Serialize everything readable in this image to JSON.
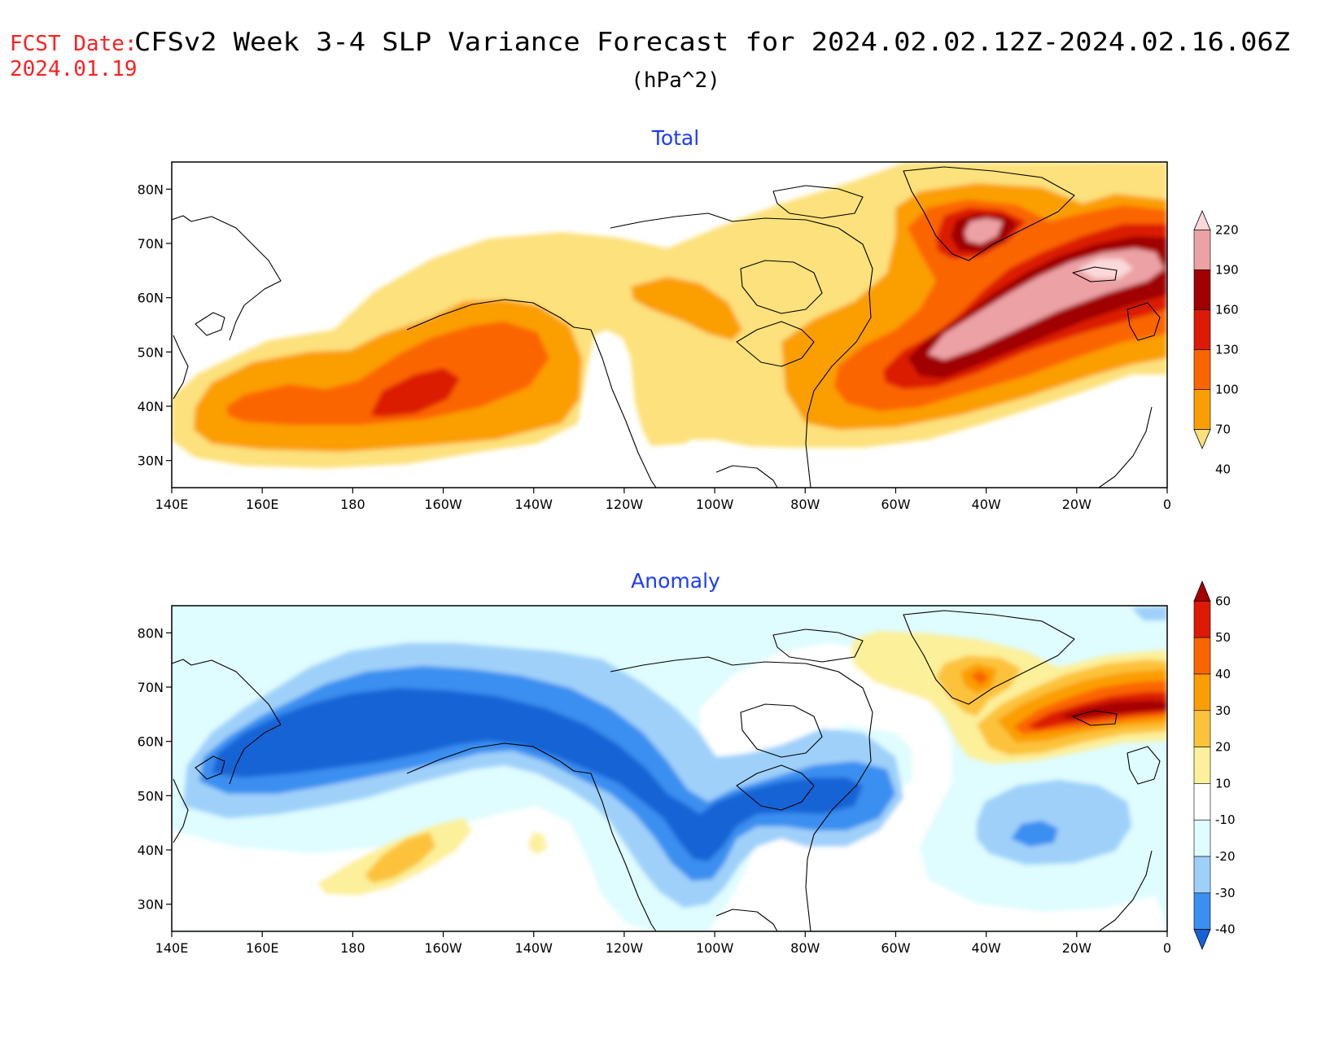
{
  "header": {
    "fcst_label": "FCST Date:",
    "fcst_date": "2024.01.19",
    "title": "CFSv2 Week 3-4 SLP Variance Forecast for 2024.02.02.12Z-2024.02.16.06Z",
    "units": "(hPa^2)"
  },
  "map": {
    "x_ticks": [
      "140E",
      "160E",
      "180",
      "160W",
      "140W",
      "120W",
      "100W",
      "80W",
      "60W",
      "40W",
      "20W",
      "0"
    ],
    "y_ticks": [
      "80N",
      "70N",
      "60N",
      "50N",
      "40N",
      "30N"
    ],
    "lon_range_deg_east": [
      140,
      360
    ],
    "lat_range": [
      25,
      85
    ]
  },
  "panels": [
    {
      "title": "Total",
      "colorbar": {
        "labels": [
          "220",
          "190",
          "160",
          "130",
          "100",
          "70",
          "40"
        ],
        "colors": [
          "#fbd9da",
          "#eca1a4",
          "#a00000",
          "#dc1a05",
          "#fb6500",
          "#fb9e05",
          "#fce17b"
        ],
        "ends": "both"
      },
      "features": [
        {
          "name": "north-pacific-variance-max",
          "lon": 195,
          "lat": 43,
          "level": 4
        },
        {
          "name": "north-atlantic-variance-max",
          "lon": 335,
          "lat": 60,
          "level": 6
        },
        {
          "name": "greenland-variance-max",
          "lon": 320,
          "lat": 72,
          "level": 6
        }
      ]
    },
    {
      "title": "Anomaly",
      "colorbar": {
        "labels": [
          "60",
          "50",
          "40",
          "30",
          "20",
          "10",
          "-10",
          "-20",
          "-30",
          "-40"
        ],
        "colors": [
          "#a50000",
          "#dc1a05",
          "#fb6500",
          "#fb9e05",
          "#fcc23a",
          "#fcf09a",
          "#ffffff",
          "#dffcfe",
          "#9fd0f9",
          "#3a8ff0",
          "#1463d6"
        ],
        "ends": "both"
      },
      "features": [
        {
          "name": "north-pacific-negative-anomaly",
          "lon": 190,
          "lat": 55,
          "level": -40
        },
        {
          "name": "north-america-negative-anomaly",
          "lon": 255,
          "lat": 45,
          "level": -40
        },
        {
          "name": "north-atlantic-positive-anomaly",
          "lon": 345,
          "lat": 63,
          "level": 60
        },
        {
          "name": "subtropical-pacific-positive-anomaly",
          "lon": 196,
          "lat": 37,
          "level": 30
        }
      ]
    }
  ]
}
